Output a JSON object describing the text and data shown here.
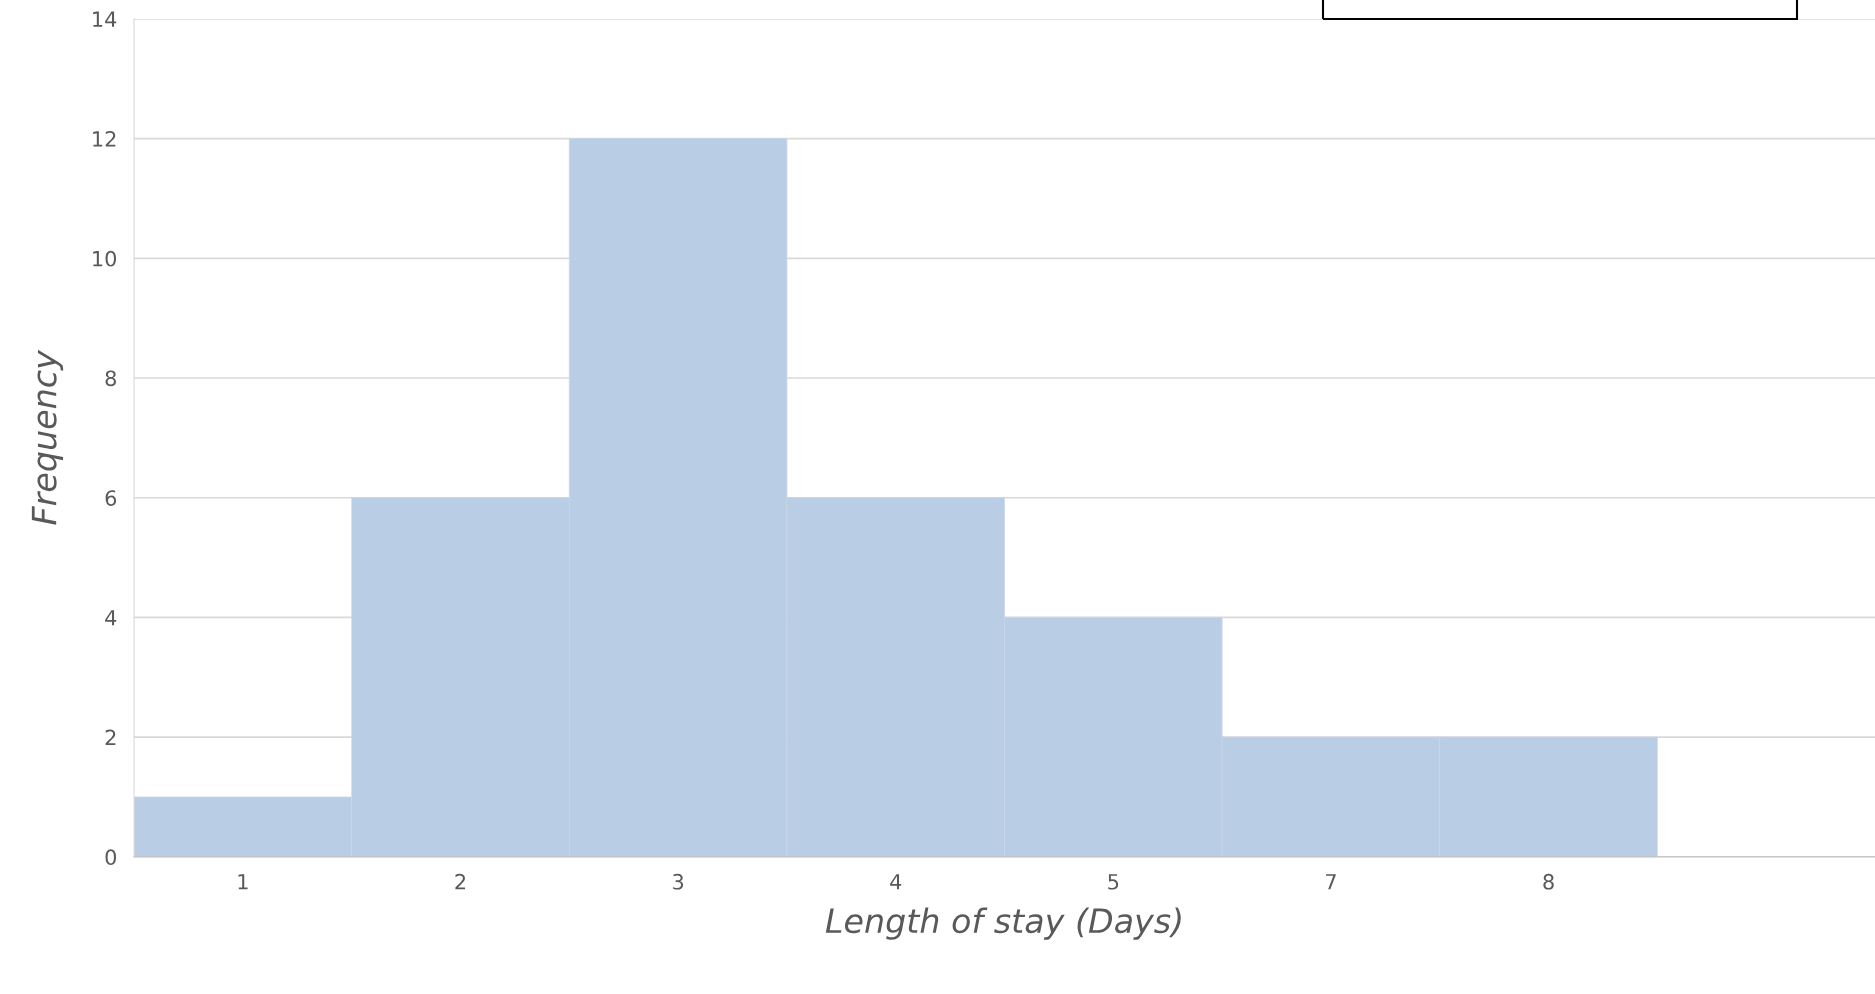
{
  "chart_data": {
    "type": "bar",
    "xlabel": "Length of stay (Days)",
    "ylabel": "Frequency",
    "categories": [
      "1",
      "2",
      "3",
      "4",
      "5",
      "7",
      "8",
      null
    ],
    "values": [
      1,
      6,
      12,
      6,
      4,
      2,
      2,
      null
    ],
    "color": "#b9cde5",
    "ylim": [
      0,
      14
    ],
    "yticks": [
      0,
      2,
      4,
      6,
      8,
      10,
      12,
      14
    ],
    "grid": "y",
    "legend": false
  }
}
